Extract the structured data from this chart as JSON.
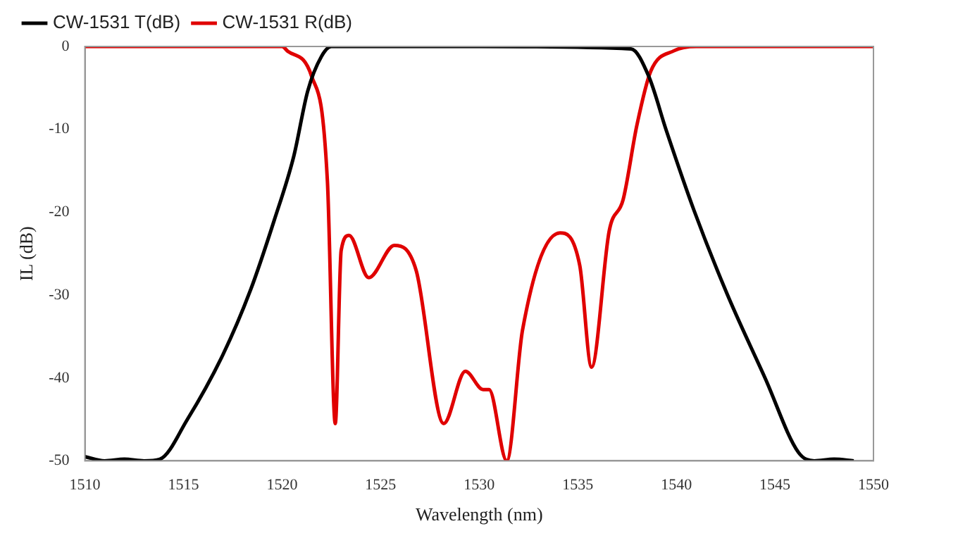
{
  "chart_data": {
    "type": "line",
    "xlabel": "Wavelength (nm)",
    "ylabel": "IL (dB)",
    "xlim": [
      1510,
      1550
    ],
    "xticks": [
      1510,
      1515,
      1520,
      1525,
      1530,
      1535,
      1540,
      1545,
      1550
    ],
    "ylim": [
      -50,
      0
    ],
    "yticks": [
      -50,
      -40,
      -30,
      -20,
      -10,
      0
    ],
    "grid": false,
    "legend": "top left",
    "marker": "none",
    "line_style": "solid",
    "series": [
      {
        "name": "CW-1531 T(dB)",
        "color": "#000000",
        "x": [
          1510,
          1511,
          1512,
          1513,
          1513.8,
          1515.2,
          1517,
          1518.4,
          1519.6,
          1520.6,
          1521.3,
          1522,
          1522.5,
          1530,
          1537.7,
          1538.6,
          1539.5,
          1540.9,
          1542.6,
          1544.5,
          1546.2,
          1547,
          1548,
          1549
        ],
        "values": [
          -49.5,
          -50,
          -49.8,
          -50,
          -49.8,
          -45,
          -37.2,
          -29.4,
          -21,
          -13.2,
          -5.4,
          -1.2,
          0,
          0,
          -0.3,
          -3.6,
          -10.2,
          -19.8,
          -30,
          -40,
          -49,
          -50,
          -49.8,
          -50
        ]
      },
      {
        "name": "CW-1531 R(dB)",
        "color": "#e00000",
        "x": [
          1510,
          1520,
          1520.3,
          1521.5,
          1522.3,
          1522.7,
          1523,
          1523.4,
          1524.4,
          1525.7,
          1526.8,
          1528.2,
          1529.3,
          1530.2,
          1530.5,
          1531.4,
          1532.2,
          1534.1,
          1535.1,
          1535.7,
          1536.6,
          1537.3,
          1538,
          1538.7,
          1539.9,
          1541,
          1550
        ],
        "values": [
          0,
          0,
          -0.6,
          -3.6,
          -16.2,
          -45.5,
          -24.6,
          -22.8,
          -27.9,
          -24,
          -27,
          -45.5,
          -39.2,
          -41.4,
          -41.4,
          -50,
          -34.2,
          -22.5,
          -26.4,
          -38.7,
          -22.2,
          -18.5,
          -9.5,
          -3,
          -0.5,
          0,
          0
        ]
      }
    ]
  }
}
